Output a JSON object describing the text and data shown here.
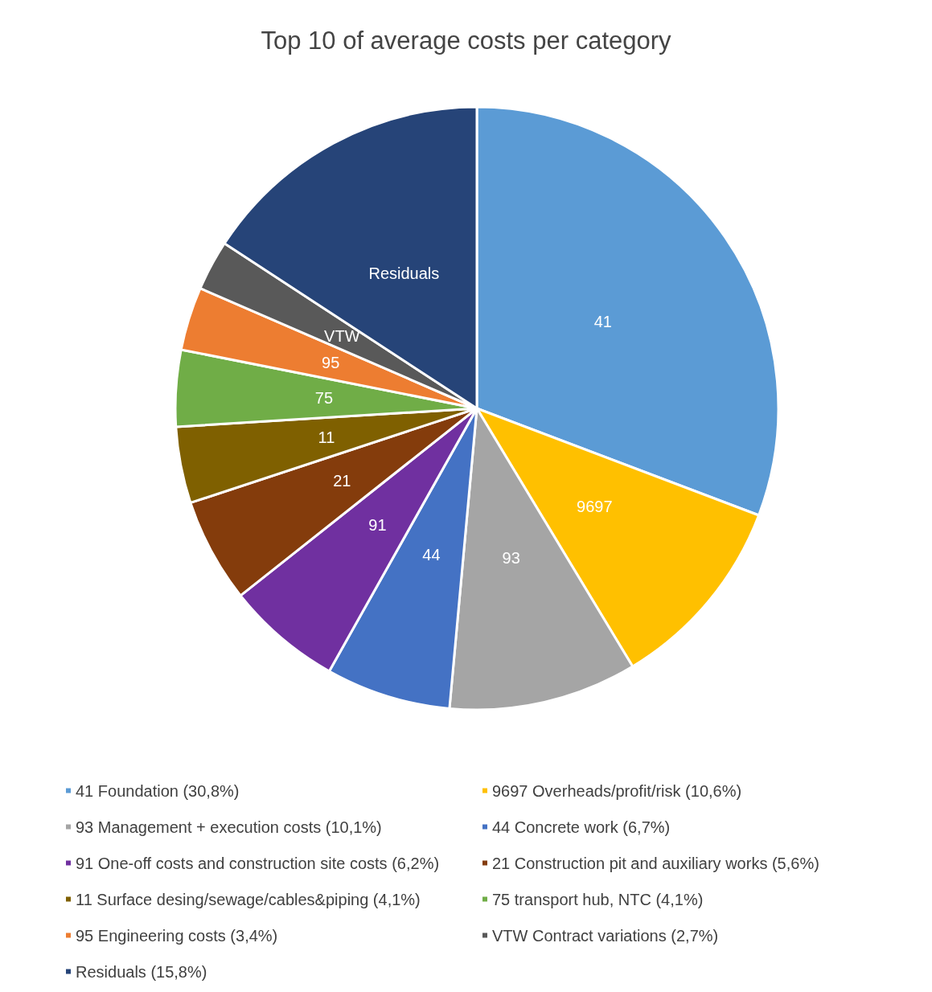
{
  "chart_data": {
    "type": "pie",
    "title": "Top 10 of average costs per category",
    "categories": [
      "41 Foundation (30,8%)",
      "9697 Overheads/profit/risk (10,6%)",
      "93 Management + execution costs (10,1%)",
      "44 Concrete work (6,7%)",
      "91 One-off costs and construction site costs (6,2%)",
      "21 Construction pit and auxiliary works (5,6%)",
      "11 Surface desing/sewage/cables&piping (4,1%)",
      "75 transport hub, NTC (4,1%)",
      "95 Engineering costs (3,4%)",
      "VTW Contract variations (2,7%)",
      "Residuals (15,8%)"
    ],
    "values": [
      30.8,
      10.6,
      10.1,
      6.7,
      6.2,
      5.6,
      4.1,
      4.1,
      3.4,
      2.7,
      15.8
    ],
    "colors": [
      "#5b9bd5",
      "#ffc000",
      "#a5a5a5",
      "#4472c4",
      "#7030a0",
      "#843c0c",
      "#7f6000",
      "#70ad47",
      "#ed7d31",
      "#595959",
      "#264478"
    ],
    "annotations": [
      "41",
      "9697",
      "93",
      "44",
      "91",
      "21",
      "11",
      "75",
      "95",
      "VTW",
      "Residuals"
    ],
    "legend": "bottom"
  }
}
